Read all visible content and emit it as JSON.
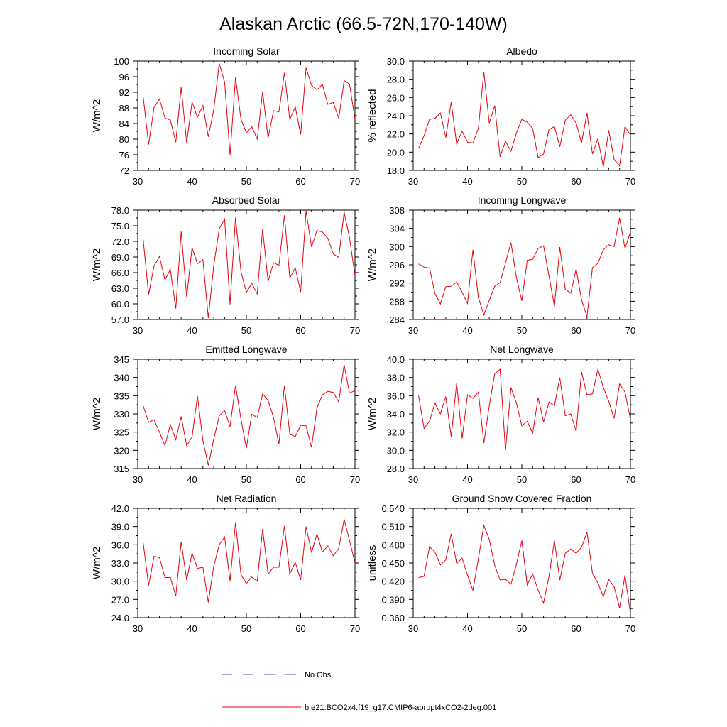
{
  "figure": {
    "title": "Alaskan Arctic (66.5-72N,170-140W)",
    "legend": [
      {
        "label": "No Obs",
        "color": "#4a4aa8",
        "style": "dashed"
      },
      {
        "label": "b.e21.BCO2x4.f19_g17.CMIP6-abrupt4xCO2-2deg.001",
        "color": "#e8000b",
        "style": "solid"
      }
    ]
  },
  "chart_data": [
    {
      "type": "line",
      "title": "Incoming Solar",
      "xlabel": "",
      "ylabel": "W/m^2",
      "xlim": [
        30,
        70
      ],
      "ylim": [
        72,
        100
      ],
      "xticks": [
        30,
        40,
        50,
        60,
        70
      ],
      "yticks": [
        72,
        76,
        80,
        84,
        88,
        92,
        96,
        100
      ],
      "yticklabels": [
        "72",
        "76",
        "80",
        "84",
        "88",
        "92",
        "96",
        "100"
      ],
      "series": [
        {
          "name": "b.e21.BCO2x4.f19_g17.CMIP6-abrupt4xCO2-2deg.001",
          "color": "#e8000b",
          "x": [
            31,
            32,
            33,
            34,
            35,
            36,
            37,
            38,
            39,
            40,
            41,
            42,
            43,
            44,
            45,
            46,
            47,
            48,
            49,
            50,
            51,
            52,
            53,
            54,
            55,
            56,
            57,
            58,
            59,
            60,
            61,
            62,
            63,
            64,
            65,
            66,
            67,
            68,
            69,
            70
          ],
          "values": [
            90.8,
            78.6,
            88.1,
            90.3,
            85.4,
            84.9,
            79.2,
            93.3,
            79.1,
            89.5,
            85.6,
            88.6,
            80.6,
            87.6,
            99.4,
            94.6,
            75.9,
            95.8,
            85.1,
            81.6,
            83.2,
            80.0,
            92.2,
            80.3,
            87.3,
            87.0,
            97.0,
            85.0,
            88.3,
            81.2,
            98.3,
            93.8,
            92.6,
            94.0,
            88.9,
            89.4,
            85.3,
            95.0,
            94.1,
            85.1
          ]
        }
      ]
    },
    {
      "type": "line",
      "title": "Albedo",
      "xlabel": "",
      "ylabel": "% reflected",
      "xlim": [
        30,
        70
      ],
      "ylim": [
        18,
        30
      ],
      "xticks": [
        30,
        40,
        50,
        60,
        70
      ],
      "yticks": [
        18,
        20,
        22,
        24,
        26,
        28,
        30
      ],
      "yticklabels": [
        "18.0",
        "20.0",
        "22.0",
        "24.0",
        "26.0",
        "28.0",
        "30.0"
      ],
      "series": [
        {
          "name": "b.e21.BCO2x4.f19_g17.CMIP6-abrupt4xCO2-2deg.001",
          "color": "#e8000b",
          "x": [
            31,
            32,
            33,
            34,
            35,
            36,
            37,
            38,
            39,
            40,
            41,
            42,
            43,
            44,
            45,
            46,
            47,
            48,
            49,
            50,
            51,
            52,
            53,
            54,
            55,
            56,
            57,
            58,
            59,
            60,
            61,
            62,
            63,
            64,
            65,
            66,
            67,
            68,
            69,
            70
          ],
          "values": [
            20.4,
            21.8,
            23.6,
            23.7,
            24.3,
            21.6,
            25.5,
            20.9,
            22.3,
            21.1,
            21.0,
            22.6,
            28.8,
            23.2,
            25.1,
            19.5,
            21.2,
            20.1,
            22.1,
            23.6,
            23.3,
            22.6,
            19.4,
            19.8,
            22.5,
            22.8,
            20.6,
            23.5,
            24.1,
            23.2,
            21.0,
            24.3,
            19.8,
            21.5,
            18.4,
            22.4,
            19.2,
            18.5,
            22.8,
            21.9
          ]
        }
      ]
    },
    {
      "type": "line",
      "title": "Absorbed Solar",
      "xlabel": "",
      "ylabel": "W/m^2",
      "xlim": [
        30,
        70
      ],
      "ylim": [
        57,
        78
      ],
      "xticks": [
        30,
        40,
        50,
        60,
        70
      ],
      "yticks": [
        57,
        60,
        63,
        66,
        69,
        72,
        75,
        78
      ],
      "yticklabels": [
        "57.0",
        "60.0",
        "63.0",
        "66.0",
        "69.0",
        "72.0",
        "75.0",
        "78.0"
      ],
      "series": [
        {
          "name": "b.e21.BCO2x4.f19_g17.CMIP6-abrupt4xCO2-2deg.001",
          "color": "#e8000b",
          "x": [
            31,
            32,
            33,
            34,
            35,
            36,
            37,
            38,
            39,
            40,
            41,
            42,
            43,
            44,
            45,
            46,
            47,
            48,
            49,
            50,
            51,
            52,
            53,
            54,
            55,
            56,
            57,
            58,
            59,
            60,
            61,
            62,
            63,
            64,
            65,
            66,
            67,
            68,
            69,
            70
          ],
          "values": [
            72.3,
            61.8,
            67.3,
            69.1,
            64.6,
            66.6,
            59.1,
            73.9,
            61.3,
            70.8,
            67.7,
            68.5,
            57.3,
            67.4,
            74.4,
            76.3,
            59.9,
            76.6,
            66.2,
            62.2,
            64.0,
            61.9,
            74.4,
            64.3,
            67.9,
            67.4,
            77.0,
            65.0,
            66.9,
            62.3,
            77.9,
            70.9,
            74.1,
            73.8,
            72.6,
            69.6,
            68.9,
            77.6,
            72.7,
            65.4
          ]
        }
      ]
    },
    {
      "type": "line",
      "title": "Incoming Longwave",
      "xlabel": "",
      "ylabel": "W/m^2",
      "xlim": [
        30,
        70
      ],
      "ylim": [
        284,
        308
      ],
      "xticks": [
        30,
        40,
        50,
        60,
        70
      ],
      "yticks": [
        284,
        288,
        292,
        296,
        300,
        304,
        308
      ],
      "yticklabels": [
        "284",
        "288",
        "292",
        "296",
        "300",
        "304",
        "308"
      ],
      "series": [
        {
          "name": "b.e21.BCO2x4.f19_g17.CMIP6-abrupt4xCO2-2deg.001",
          "color": "#e8000b",
          "x": [
            31,
            32,
            33,
            34,
            35,
            36,
            37,
            38,
            39,
            40,
            41,
            42,
            43,
            44,
            45,
            46,
            47,
            48,
            49,
            50,
            51,
            52,
            53,
            54,
            55,
            56,
            57,
            58,
            59,
            60,
            61,
            62,
            63,
            64,
            65,
            66,
            67,
            68,
            69,
            70
          ],
          "values": [
            296.2,
            295.5,
            295.3,
            289.7,
            287.4,
            291.2,
            291.3,
            292.2,
            290.0,
            287.5,
            299.3,
            288.8,
            285.0,
            288.2,
            291.3,
            292.1,
            296.4,
            300.9,
            293.2,
            288.1,
            297.0,
            297.2,
            299.6,
            300.2,
            293.5,
            286.9,
            299.9,
            290.6,
            289.8,
            295.1,
            288.3,
            284.6,
            295.4,
            296.3,
            299.3,
            300.4,
            300.0,
            306.3,
            299.6,
            303.2
          ]
        }
      ]
    },
    {
      "type": "line",
      "title": "Emitted Longwave",
      "xlabel": "",
      "ylabel": "W/m^2",
      "xlim": [
        30,
        70
      ],
      "ylim": [
        315,
        345
      ],
      "xticks": [
        30,
        40,
        50,
        60,
        70
      ],
      "yticks": [
        315,
        320,
        325,
        330,
        335,
        340,
        345
      ],
      "yticklabels": [
        "315",
        "320",
        "325",
        "330",
        "335",
        "340",
        "345"
      ],
      "series": [
        {
          "name": "b.e21.BCO2x4.f19_g17.CMIP6-abrupt4xCO2-2deg.001",
          "color": "#e8000b",
          "x": [
            31,
            32,
            33,
            34,
            35,
            36,
            37,
            38,
            39,
            40,
            41,
            42,
            43,
            44,
            45,
            46,
            47,
            48,
            49,
            50,
            51,
            52,
            53,
            54,
            55,
            56,
            57,
            58,
            59,
            60,
            61,
            62,
            63,
            64,
            65,
            66,
            67,
            68,
            69,
            70
          ],
          "values": [
            332.2,
            327.7,
            328.4,
            325.0,
            321.3,
            327.1,
            322.9,
            329.3,
            321.3,
            323.6,
            334.9,
            322.7,
            315.9,
            323.1,
            329.5,
            330.9,
            326.5,
            337.8,
            328.6,
            320.6,
            329.9,
            329.0,
            335.5,
            333.7,
            329.0,
            321.7,
            337.8,
            324.4,
            323.8,
            326.9,
            326.7,
            320.8,
            331.6,
            335.2,
            336.2,
            335.9,
            333.3,
            343.5,
            335.7,
            336.4
          ]
        }
      ]
    },
    {
      "type": "line",
      "title": "Net Longwave",
      "xlabel": "",
      "ylabel": "W/m^2",
      "xlim": [
        30,
        70
      ],
      "ylim": [
        28,
        40
      ],
      "xticks": [
        30,
        40,
        50,
        60,
        70
      ],
      "yticks": [
        28,
        30,
        32,
        34,
        36,
        38,
        40
      ],
      "yticklabels": [
        "28.0",
        "30.0",
        "32.0",
        "34.0",
        "36.0",
        "38.0",
        "40.0"
      ],
      "series": [
        {
          "name": "b.e21.BCO2x4.f19_g17.CMIP6-abrupt4xCO2-2deg.001",
          "color": "#e8000b",
          "x": [
            31,
            32,
            33,
            34,
            35,
            36,
            37,
            38,
            39,
            40,
            41,
            42,
            43,
            44,
            45,
            46,
            47,
            48,
            49,
            50,
            51,
            52,
            53,
            54,
            55,
            56,
            57,
            58,
            59,
            60,
            61,
            62,
            63,
            64,
            65,
            66,
            67,
            68,
            69,
            70
          ],
          "values": [
            36.0,
            32.4,
            33.2,
            35.2,
            34.0,
            35.9,
            31.5,
            37.4,
            31.3,
            36.1,
            35.7,
            36.4,
            30.8,
            34.9,
            38.4,
            38.9,
            30.0,
            36.9,
            35.2,
            32.7,
            33.2,
            31.9,
            35.8,
            33.1,
            35.3,
            34.9,
            38.0,
            33.8,
            34.0,
            32.1,
            38.6,
            36.1,
            36.2,
            38.9,
            36.9,
            35.4,
            33.5,
            37.3,
            36.4,
            33.4
          ]
        }
      ]
    },
    {
      "type": "line",
      "title": "Net Radiation",
      "xlabel": "",
      "ylabel": "W/m^2",
      "xlim": [
        30,
        70
      ],
      "ylim": [
        24,
        42
      ],
      "xticks": [
        30,
        40,
        50,
        60,
        70
      ],
      "yticks": [
        24,
        27,
        30,
        33,
        36,
        39,
        42
      ],
      "yticklabels": [
        "24.0",
        "27.0",
        "30.0",
        "33.0",
        "36.0",
        "39.0",
        "42.0"
      ],
      "series": [
        {
          "name": "b.e21.BCO2x4.f19_g17.CMIP6-abrupt4xCO2-2deg.001",
          "color": "#e8000b",
          "x": [
            31,
            32,
            33,
            34,
            35,
            36,
            37,
            38,
            39,
            40,
            41,
            42,
            43,
            44,
            45,
            46,
            47,
            48,
            49,
            50,
            51,
            52,
            53,
            54,
            55,
            56,
            57,
            58,
            59,
            60,
            61,
            62,
            63,
            64,
            65,
            66,
            67,
            68,
            69,
            70
          ],
          "values": [
            36.3,
            29.3,
            34.1,
            33.9,
            30.6,
            30.6,
            27.6,
            36.5,
            30.2,
            34.6,
            32.1,
            32.3,
            26.5,
            32.5,
            36.0,
            37.3,
            30.0,
            39.7,
            31.1,
            29.6,
            30.7,
            30.0,
            38.6,
            31.2,
            32.3,
            32.3,
            39.1,
            31.2,
            33.1,
            30.2,
            39.0,
            34.7,
            37.8,
            34.8,
            35.8,
            34.2,
            35.4,
            40.2,
            36.7,
            33.0
          ]
        }
      ]
    },
    {
      "type": "line",
      "title": "Ground Snow Covered Fraction",
      "xlabel": "",
      "ylabel": "unitless",
      "xlim": [
        30,
        70
      ],
      "ylim": [
        0.36,
        0.54
      ],
      "xticks": [
        30,
        40,
        50,
        60,
        70
      ],
      "yticks": [
        0.36,
        0.39,
        0.42,
        0.45,
        0.48,
        0.51,
        0.54
      ],
      "yticklabels": [
        "0.360",
        "0.390",
        "0.420",
        "0.450",
        "0.480",
        "0.510",
        "0.540"
      ],
      "series": [
        {
          "name": "b.e21.BCO2x4.f19_g17.CMIP6-abrupt4xCO2-2deg.001",
          "color": "#e8000b",
          "x": [
            31,
            32,
            33,
            34,
            35,
            36,
            37,
            38,
            39,
            40,
            41,
            42,
            43,
            44,
            45,
            46,
            47,
            48,
            49,
            50,
            51,
            52,
            53,
            54,
            55,
            56,
            57,
            58,
            59,
            60,
            61,
            62,
            63,
            64,
            65,
            66,
            67,
            68,
            69,
            70
          ],
          "values": [
            0.426,
            0.428,
            0.477,
            0.468,
            0.447,
            0.455,
            0.498,
            0.449,
            0.458,
            0.43,
            0.405,
            0.457,
            0.512,
            0.489,
            0.446,
            0.422,
            0.423,
            0.415,
            0.448,
            0.487,
            0.414,
            0.432,
            0.405,
            0.384,
            0.428,
            0.487,
            0.422,
            0.466,
            0.473,
            0.466,
            0.476,
            0.501,
            0.433,
            0.417,
            0.395,
            0.423,
            0.411,
            0.376,
            0.43,
            0.367
          ]
        }
      ]
    }
  ]
}
